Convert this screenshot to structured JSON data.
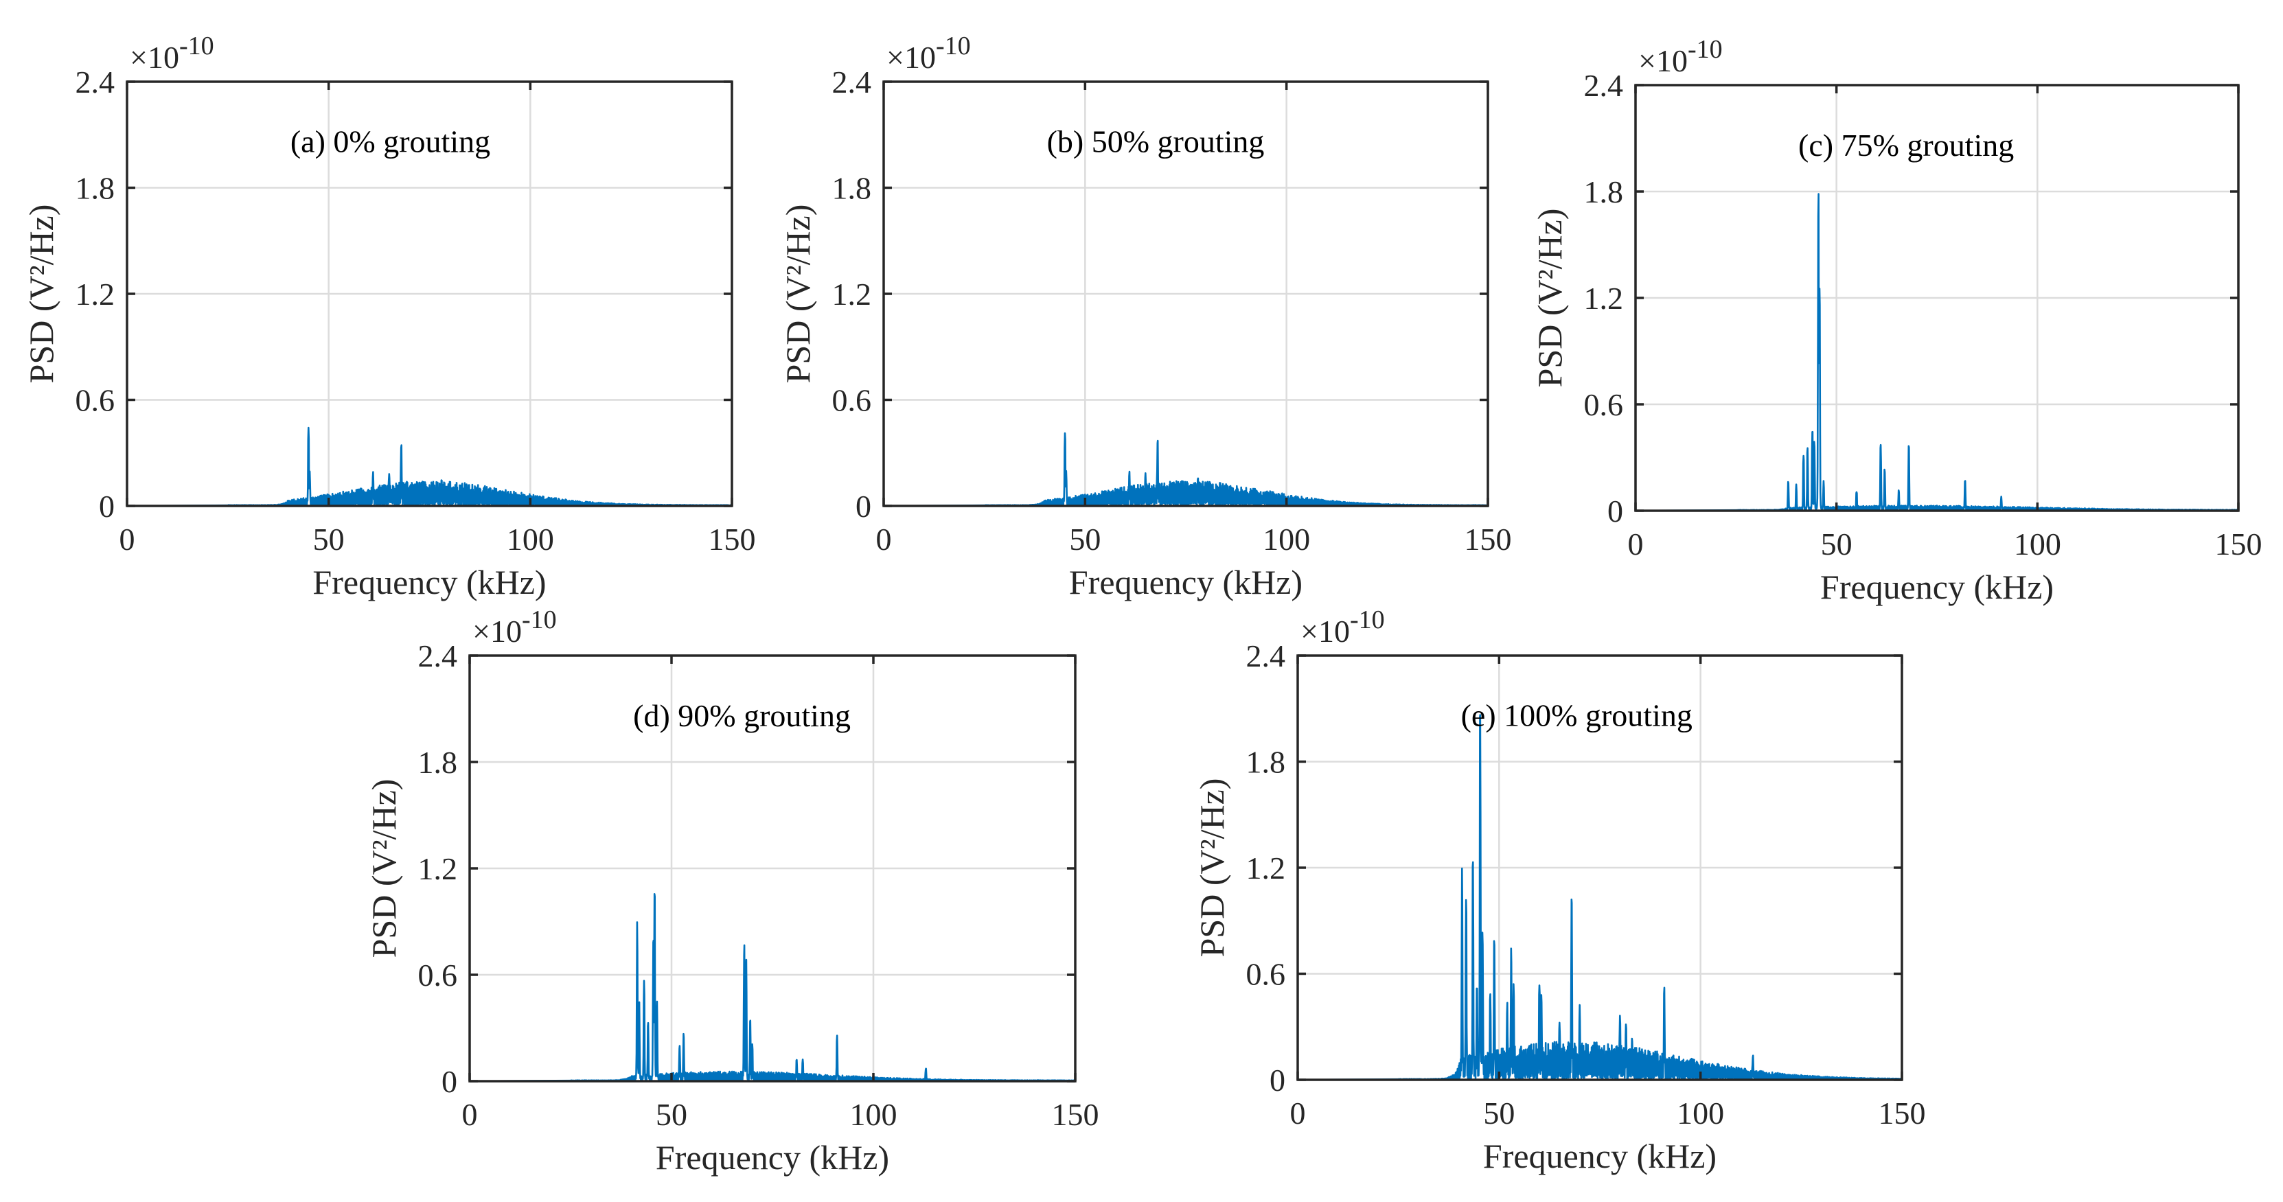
{
  "colors": {
    "series": "#0072BD",
    "axis": "#262626",
    "grid": "#dcdcdc"
  },
  "chart_data": [
    {
      "type": "line",
      "annotation": "(a) 0% grouting",
      "xlabel": "Frequency (kHz)",
      "ylabel": "PSD (V²/Hz)",
      "y_exponent": "×10",
      "y_exponent_power": "-10",
      "xlim": [
        0,
        150
      ],
      "ylim": [
        0,
        2.4
      ],
      "xticks": [
        "0",
        "50",
        "100",
        "150"
      ],
      "yticks": [
        "0",
        "0.6",
        "1.2",
        "1.8",
        "2.4"
      ],
      "grid": true,
      "signal_start_khz": 25,
      "broadband": {
        "center_khz": 75,
        "width_khz": 28,
        "amplitude": 0.11,
        "onset_khz": 40
      },
      "peaks": [
        [
          45,
          0.45
        ],
        [
          45.3,
          0.2
        ],
        [
          61,
          0.2
        ],
        [
          65,
          0.19
        ],
        [
          68,
          0.38
        ],
        [
          78,
          0.16
        ]
      ]
    },
    {
      "type": "line",
      "annotation": "(b) 50% grouting",
      "xlabel": "Frequency (kHz)",
      "ylabel": "PSD (V²/Hz)",
      "y_exponent": "×10",
      "y_exponent_power": "-10",
      "xlim": [
        0,
        150
      ],
      "ylim": [
        0,
        2.4
      ],
      "xticks": [
        "0",
        "50",
        "100",
        "150"
      ],
      "yticks": [
        "0",
        "0.6",
        "1.2",
        "1.8",
        "2.4"
      ],
      "grid": true,
      "signal_start_khz": 25,
      "broadband": {
        "center_khz": 75,
        "width_khz": 28,
        "amplitude": 0.11,
        "onset_khz": 40
      },
      "peaks": [
        [
          45,
          0.45
        ],
        [
          45.3,
          0.2
        ],
        [
          61,
          0.2
        ],
        [
          65,
          0.19
        ],
        [
          68,
          0.38
        ],
        [
          78,
          0.16
        ]
      ]
    },
    {
      "type": "line",
      "annotation": "(c) 75% grouting",
      "xlabel": "Frequency (kHz)",
      "ylabel": "PSD (V²/Hz)",
      "y_exponent": "×10",
      "y_exponent_power": "-10",
      "xlim": [
        0,
        150
      ],
      "ylim": [
        0,
        2.4
      ],
      "xticks": [
        "0",
        "50",
        "100",
        "150"
      ],
      "yticks": [
        "0",
        "0.6",
        "1.2",
        "1.8",
        "2.4"
      ],
      "grid": true,
      "signal_start_khz": 25,
      "broadband": {
        "center_khz": 70,
        "width_khz": 40,
        "amplitude": 0.02,
        "onset_khz": 38
      },
      "peaks": [
        [
          38,
          0.17
        ],
        [
          40,
          0.15
        ],
        [
          41.8,
          0.36
        ],
        [
          42.8,
          0.36
        ],
        [
          44,
          0.51
        ],
        [
          44.5,
          0.4
        ],
        [
          45.5,
          1.94
        ],
        [
          45.8,
          1.4
        ],
        [
          46.8,
          0.17
        ],
        [
          55,
          0.12
        ],
        [
          61,
          0.4
        ],
        [
          62,
          0.25
        ],
        [
          65.5,
          0.12
        ],
        [
          68,
          0.4
        ],
        [
          82,
          0.18
        ],
        [
          91,
          0.08
        ]
      ]
    },
    {
      "type": "line",
      "annotation": "(d) 90% grouting",
      "xlabel": "Frequency (kHz)",
      "ylabel": "PSD (V²/Hz)",
      "y_exponent": "×10",
      "y_exponent_power": "-10",
      "xlim": [
        0,
        150
      ],
      "ylim": [
        0,
        2.4
      ],
      "xticks": [
        "0",
        "50",
        "100",
        "150"
      ],
      "yticks": [
        "0",
        "0.6",
        "1.2",
        "1.8",
        "2.4"
      ],
      "grid": true,
      "signal_start_khz": 25,
      "broadband": {
        "center_khz": 65,
        "width_khz": 35,
        "amplitude": 0.04,
        "onset_khz": 40
      },
      "peaks": [
        [
          41.5,
          0.9
        ],
        [
          42,
          0.45
        ],
        [
          43.2,
          0.62
        ],
        [
          44.2,
          0.35
        ],
        [
          45.5,
          0.85
        ],
        [
          45.8,
          1.11
        ],
        [
          46.4,
          0.45
        ],
        [
          52,
          0.22
        ],
        [
          53,
          0.27
        ],
        [
          68,
          0.8
        ],
        [
          68.5,
          0.7
        ],
        [
          69.5,
          0.36
        ],
        [
          70,
          0.22
        ],
        [
          81,
          0.13
        ],
        [
          82.5,
          0.13
        ],
        [
          91,
          0.27
        ],
        [
          113,
          0.08
        ]
      ]
    },
    {
      "type": "line",
      "annotation": "(e) 100% grouting",
      "xlabel": "Frequency (kHz)",
      "ylabel": "PSD (V²/Hz)",
      "y_exponent": "×10",
      "y_exponent_power": "-10",
      "xlim": [
        0,
        150
      ],
      "ylim": [
        0,
        2.4
      ],
      "xticks": [
        "0",
        "50",
        "100",
        "150"
      ],
      "yticks": [
        "0",
        "0.6",
        "1.2",
        "1.8",
        "2.4"
      ],
      "grid": true,
      "signal_start_khz": 25,
      "broadband": {
        "center_khz": 68,
        "width_khz": 38,
        "amplitude": 0.17,
        "onset_khz": 40.5
      },
      "peaks": [
        [
          40.8,
          1.2
        ],
        [
          41.8,
          1.13
        ],
        [
          43.5,
          1.3
        ],
        [
          44.5,
          0.6
        ],
        [
          45.3,
          2.28
        ],
        [
          45.9,
          0.9
        ],
        [
          47.8,
          0.55
        ],
        [
          48.8,
          0.85
        ],
        [
          52,
          0.45
        ],
        [
          53,
          0.75
        ],
        [
          53.6,
          0.58
        ],
        [
          60,
          0.58
        ],
        [
          60.5,
          0.5
        ],
        [
          65,
          0.35
        ],
        [
          68,
          1.19
        ],
        [
          70,
          0.45
        ],
        [
          80,
          0.38
        ],
        [
          81.5,
          0.36
        ],
        [
          83,
          0.25
        ],
        [
          91,
          0.53
        ],
        [
          113,
          0.15
        ]
      ]
    }
  ]
}
